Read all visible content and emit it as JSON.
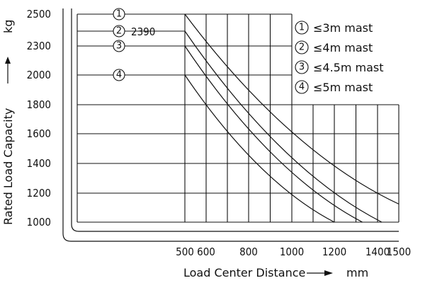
{
  "chart_data": {
    "type": "line",
    "xlabel": "Load Center Distance",
    "xunit": "mm",
    "ylabel": "Rated Load Capacity",
    "yunit": "kg",
    "x_ticks": [
      "500",
      "600",
      "800",
      "1000",
      "1200",
      "1400",
      "1500"
    ],
    "y_ticks": [
      "2500",
      "2300",
      "2000",
      "1800",
      "1600",
      "1400",
      "1200",
      "1000"
    ],
    "grid": true,
    "legend_placement": "top-right",
    "annotation": "2390",
    "series": [
      {
        "marker": "1",
        "name": "≤3m mast",
        "x": [
          500,
          1500
        ],
        "y": [
          2500,
          1125
        ]
      },
      {
        "marker": "2",
        "name": "≤4m mast",
        "x": [
          500,
          1420
        ],
        "y": [
          2390,
          1000
        ]
      },
      {
        "marker": "3",
        "name": "≤4.5m mast",
        "x": [
          500,
          1330
        ],
        "y": [
          2300,
          1000
        ]
      },
      {
        "marker": "4",
        "name": "≤5m mast",
        "x": [
          500,
          1200
        ],
        "y": [
          2000,
          1000
        ]
      }
    ]
  }
}
